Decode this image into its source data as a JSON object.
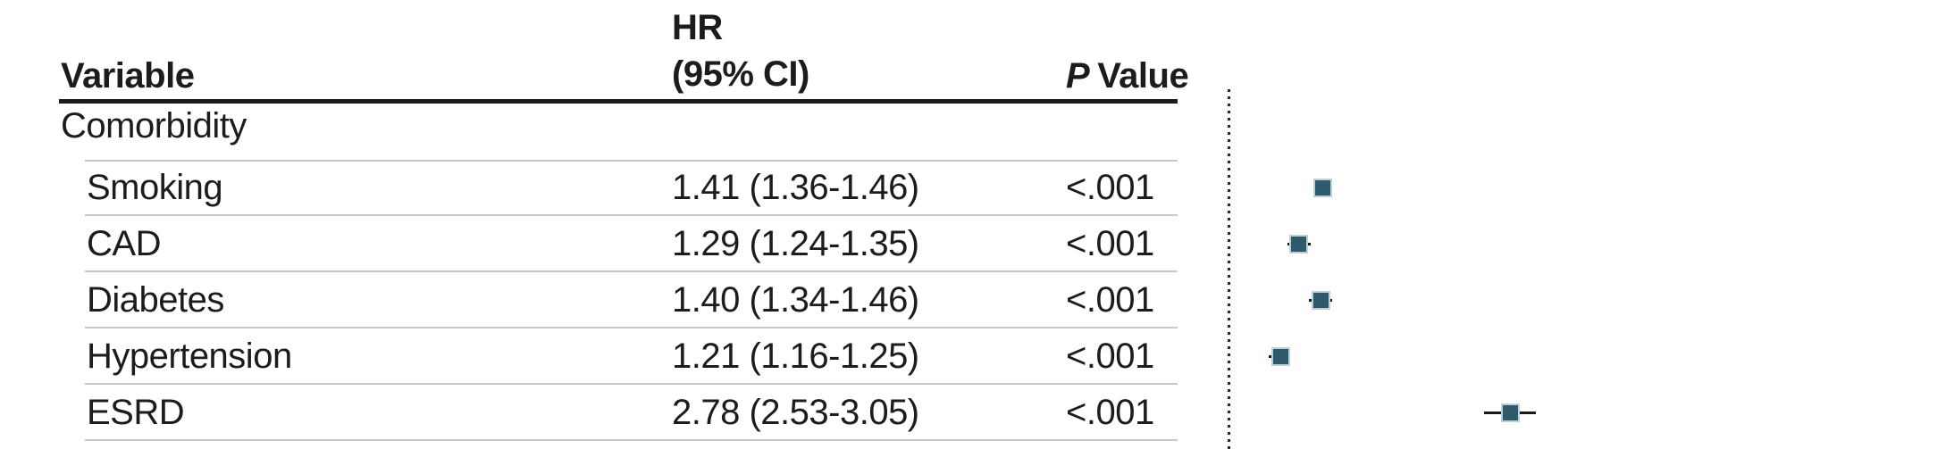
{
  "table": {
    "headers": {
      "variable": "Variable",
      "hr_line1": "HR",
      "hr_line2": "(95% CI)",
      "p_italic": "P",
      "p_rest": "Value"
    },
    "group_label": "Comorbidity",
    "rows": [
      {
        "variable": "Smoking",
        "hr_ci": "1.41 (1.36-1.46)",
        "p": "<.001"
      },
      {
        "variable": "CAD",
        "hr_ci": "1.29 (1.24-1.35)",
        "p": "<.001"
      },
      {
        "variable": "Diabetes",
        "hr_ci": "1.40 (1.34-1.46)",
        "p": "<.001"
      },
      {
        "variable": "Hypertension",
        "hr_ci": "1.21 (1.16-1.25)",
        "p": "<.001"
      },
      {
        "variable": "ESRD",
        "hr_ci": "2.78 (2.53-3.05)",
        "p": "<.001"
      }
    ]
  },
  "chart_data": {
    "type": "scatter",
    "subtype": "forest-plot",
    "title": "",
    "categories": [
      "Smoking",
      "CAD",
      "Diabetes",
      "Hypertension",
      "ESRD"
    ],
    "series": [
      {
        "name": "Hazard ratio (95% CI)",
        "points": [
          {
            "label": "Smoking",
            "hr": 1.41,
            "lo": 1.36,
            "hi": 1.46
          },
          {
            "label": "CAD",
            "hr": 1.29,
            "lo": 1.24,
            "hi": 1.35
          },
          {
            "label": "Diabetes",
            "hr": 1.4,
            "lo": 1.34,
            "hi": 1.46
          },
          {
            "label": "Hypertension",
            "hr": 1.21,
            "lo": 1.16,
            "hi": 1.25
          },
          {
            "label": "ESRD",
            "hr": 2.78,
            "lo": 2.53,
            "hi": 3.05
          }
        ]
      }
    ],
    "x_scale": "log",
    "reference_line": 1.0,
    "grid": "off",
    "legend": "none",
    "colors": {
      "marker": "#2f5a6b",
      "marker_border": "#bdd2d8",
      "whisker": "#1a1a1a",
      "reference_line": "#232323"
    }
  }
}
